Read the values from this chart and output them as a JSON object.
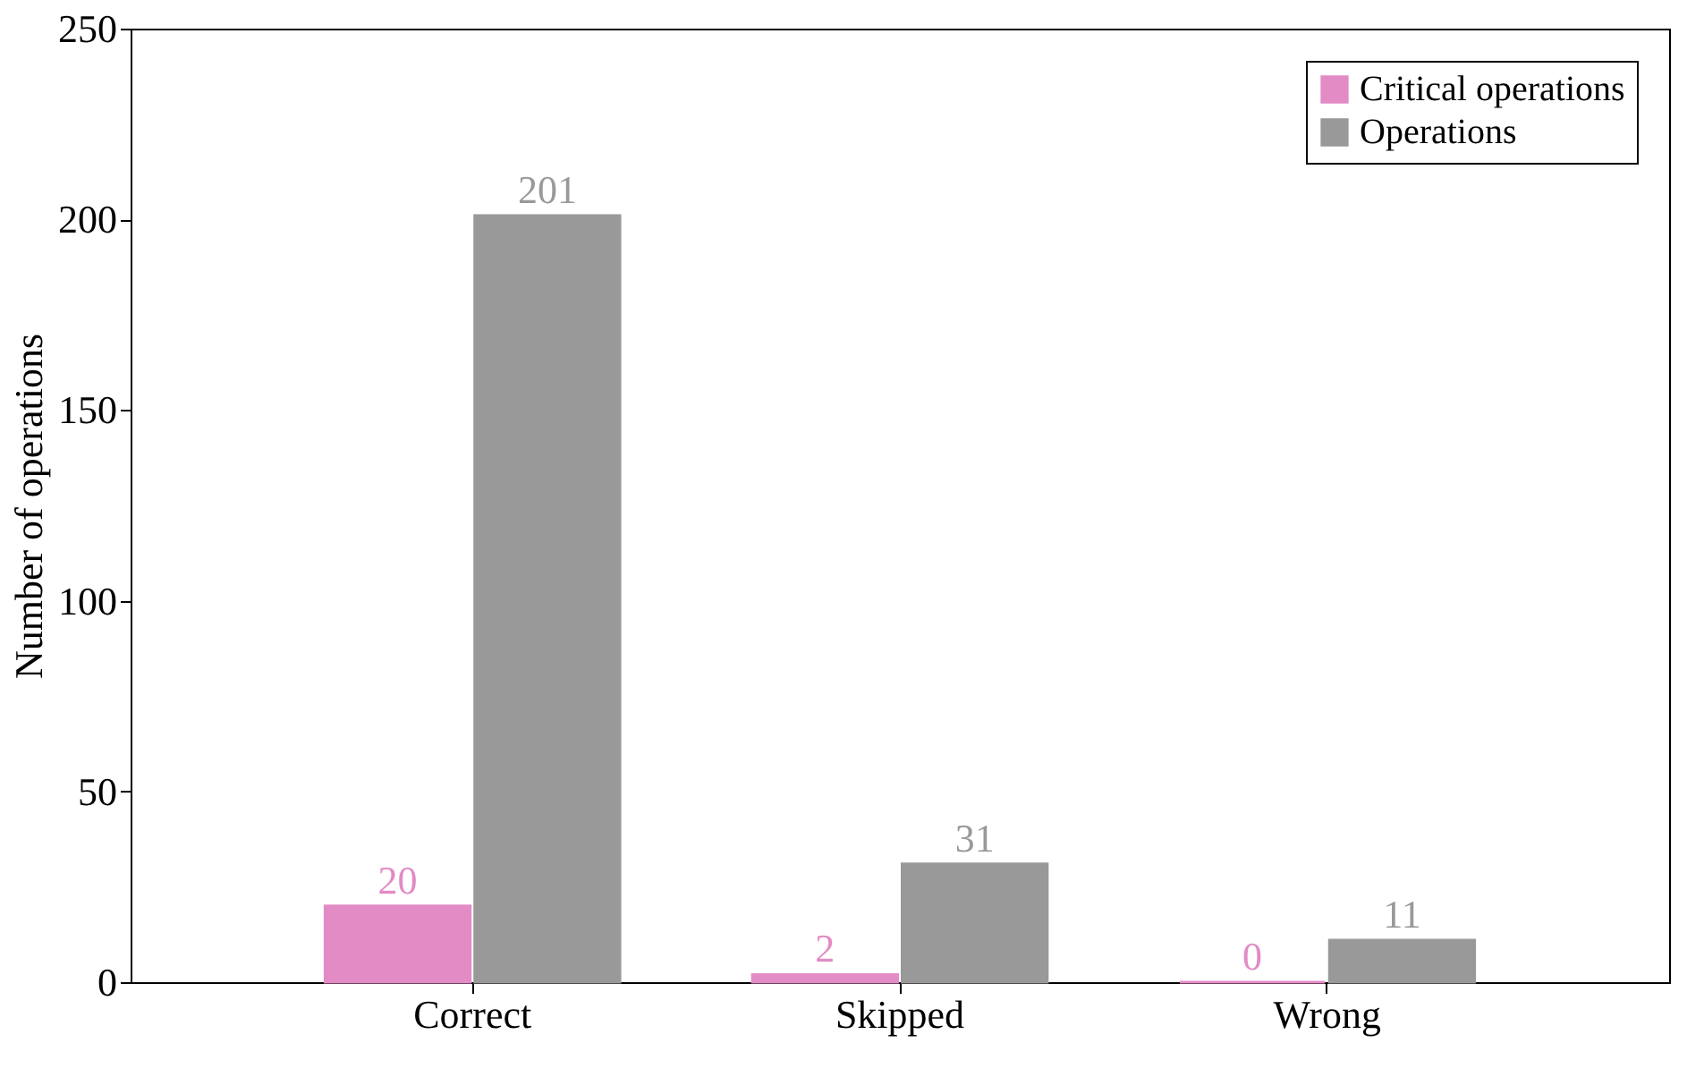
{
  "chart_data": {
    "type": "bar",
    "ylabel": "Number of operations",
    "categories": [
      "Correct",
      "Skipped",
      "Wrong"
    ],
    "series": [
      {
        "name": "Critical operations",
        "color": "#e28bc5",
        "values": [
          20,
          2,
          0
        ]
      },
      {
        "name": "Operations",
        "color": "#999999",
        "values": [
          201,
          31,
          11
        ]
      }
    ],
    "ylim": [
      0,
      250
    ],
    "yticks": [
      0,
      50,
      100,
      150,
      200,
      250
    ],
    "grid": false,
    "legend": "top right",
    "data_labels": true
  }
}
